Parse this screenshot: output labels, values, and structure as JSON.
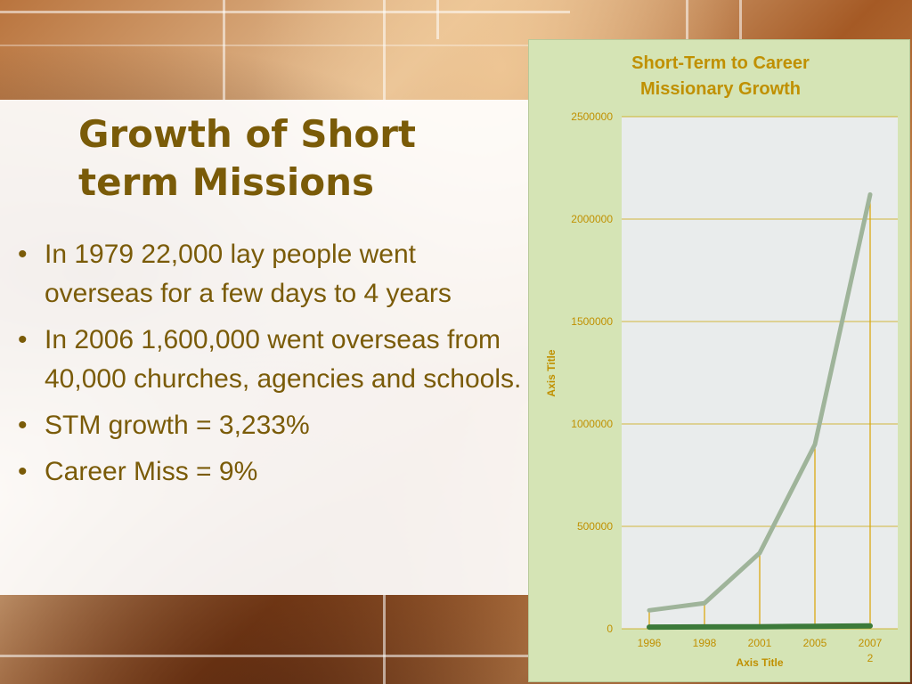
{
  "slide": {
    "title": "Growth of Short term Missions",
    "bullets": [
      "In 1979 22,000 lay people went overseas for a few days to 4 years",
      "In 2006 1,600,000 went overseas from 40,000 churches, agencies and schools.",
      "STM growth = 3,233%",
      "Career Miss = 9%"
    ],
    "bullet_char": "•"
  },
  "colors": {
    "title_text": "#7a5b08",
    "chart_text": "#c09000",
    "chart_bg": "#d5e4b5",
    "plot_bg": "#e9ecec",
    "series_stm": "#9fb49a",
    "series_career": "#3c7a3a",
    "drop_lines": "#d9a400"
  },
  "chart_data": {
    "type": "line",
    "title_lines": [
      "Short-Term to Career",
      "Missionary Growth"
    ],
    "xlabel": "Axis Title",
    "ylabel": "Axis Title",
    "categories": [
      "1996",
      "1998",
      "2001",
      "2005",
      "2007"
    ],
    "extra_tick_label": "2",
    "ylim": [
      0,
      2500000
    ],
    "yticks": [
      "2500000",
      "2000000",
      "1500000",
      "1000000",
      "500000",
      "0"
    ],
    "grid": true,
    "series": [
      {
        "values": [
          90000,
          125000,
          370000,
          900000,
          2120000
        ]
      },
      {
        "values": [
          8000,
          9000,
          10000,
          12000,
          14000
        ]
      }
    ]
  }
}
